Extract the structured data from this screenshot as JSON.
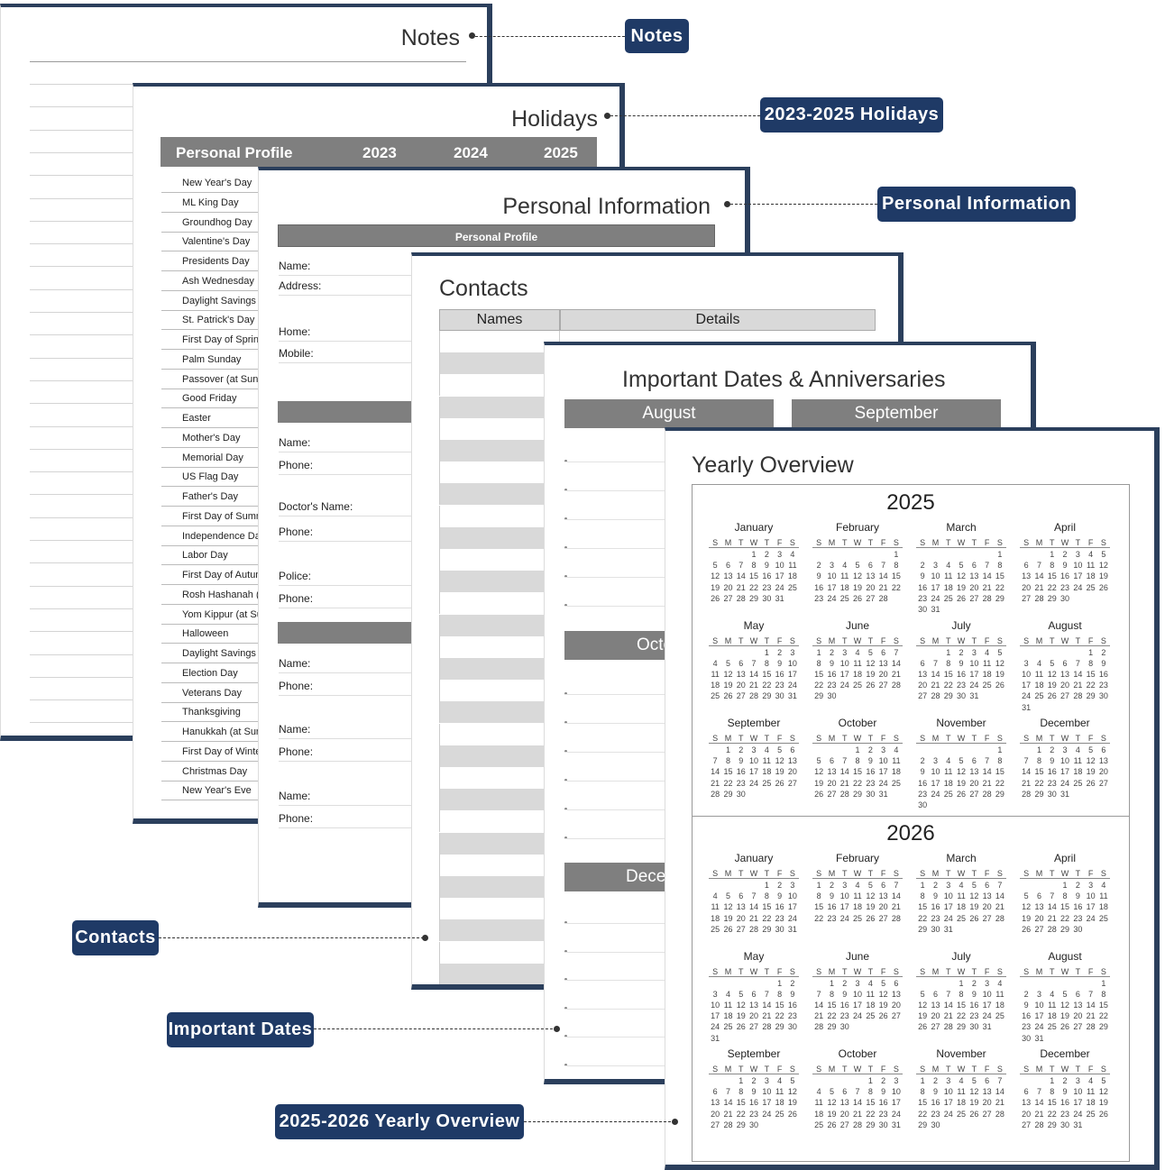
{
  "colors": {
    "frame": "#2b3f5c",
    "callout": "#1f3a66",
    "bar": "#7f7f7f",
    "stripe": "#d9d9d9"
  },
  "notes": {
    "title": "Notes"
  },
  "holidays": {
    "title": "Holidays",
    "header": [
      "Personal Profile",
      "2023",
      "2024",
      "2025"
    ],
    "items": [
      "New Year's Day",
      "ML King Day",
      "Groundhog Day",
      "Valentine's Day",
      "Presidents Day",
      "Ash Wednesday",
      "Daylight Savings",
      "St. Patrick's Day",
      "First Day of Spring",
      "Palm Sunday",
      "Passover (at Sundown)",
      "Good Friday",
      "Easter",
      "Mother's Day",
      "Memorial Day",
      "US Flag Day",
      "Father's Day",
      "First Day of Summer",
      "Independence Day",
      "Labor Day",
      "First Day of Autumn",
      "Rosh Hashanah (at Sundown)",
      "Yom Kippur (at Sundown)",
      "Halloween",
      "Daylight Savings",
      "Election Day",
      "Veterans Day",
      "Thanksgiving",
      "Hanukkah (at Sundown)",
      "First Day of Winter",
      "Christmas Day",
      "New Year's Eve"
    ]
  },
  "personal": {
    "title": "Personal Information",
    "header": "Personal Profile",
    "fields": [
      [
        "Name:",
        288
      ],
      [
        "Address:",
        310
      ],
      [
        "Home:",
        361
      ],
      [
        "Mobile:",
        385
      ],
      [
        "Name:",
        484
      ],
      [
        "Phone:",
        509
      ],
      [
        "Doctor's Name:",
        555
      ],
      [
        "Phone:",
        583
      ],
      [
        "Police:",
        632
      ],
      [
        "Phone:",
        657
      ],
      [
        "Name:",
        729
      ],
      [
        "Phone:",
        754
      ],
      [
        "Name:",
        802
      ],
      [
        "Phone:",
        827
      ],
      [
        "Name:",
        876
      ],
      [
        "Phone:",
        901
      ]
    ]
  },
  "contacts": {
    "title": "Contacts",
    "col_names": "Names",
    "col_details": "Details"
  },
  "dates": {
    "title": "Important Dates & Anniversaries",
    "months": [
      "August",
      "September",
      "October",
      "December"
    ]
  },
  "yearly": {
    "title": "Yearly Overview",
    "weekdays": [
      "S",
      "M",
      "T",
      "W",
      "T",
      "F",
      "S"
    ],
    "months": [
      "January",
      "February",
      "March",
      "April",
      "May",
      "June",
      "July",
      "August",
      "September",
      "October",
      "November",
      "December"
    ],
    "years": [
      2025,
      2026
    ]
  },
  "callouts": {
    "notes": "Notes",
    "holidays": "2023-2025 Holidays",
    "personal": "Personal Information",
    "contacts": "Contacts",
    "dates": "Important Dates",
    "yearly": "2025-2026 Yearly Overview"
  }
}
